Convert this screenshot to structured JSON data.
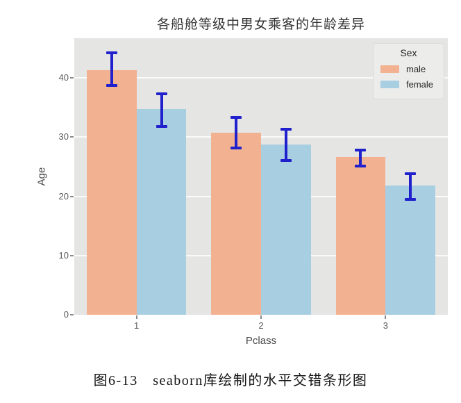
{
  "page": {
    "caption": "图6-13　seaborn库绘制的水平交错条形图"
  },
  "chart_data": {
    "type": "bar",
    "title": "各船舱等级中男女乘客的年龄差异",
    "xlabel": "Pclass",
    "ylabel": "Age",
    "categories": [
      "1",
      "2",
      "3"
    ],
    "series": [
      {
        "name": "male",
        "color": "#F2B191",
        "values": [
          41.3,
          30.8,
          26.6
        ],
        "error_intervals": [
          [
            38.5,
            44.5
          ],
          [
            27.9,
            33.5
          ],
          [
            24.9,
            28.1
          ]
        ]
      },
      {
        "name": "female",
        "color": "#A8CEE2",
        "values": [
          34.7,
          28.7,
          21.8
        ],
        "error_intervals": [
          [
            31.6,
            37.6
          ],
          [
            25.8,
            31.6
          ],
          [
            19.3,
            24.1
          ]
        ]
      }
    ],
    "yticks": [
      0,
      10,
      20,
      30,
      40
    ],
    "ylim": [
      0,
      46.7
    ],
    "bar_width_fraction": 0.4,
    "grid": true,
    "legend": {
      "title": "Sex",
      "position": "upper right"
    },
    "error_bar_color": "#2020CC",
    "plot_background": "#E5E5E4",
    "grid_color": "#FAFAFA"
  }
}
